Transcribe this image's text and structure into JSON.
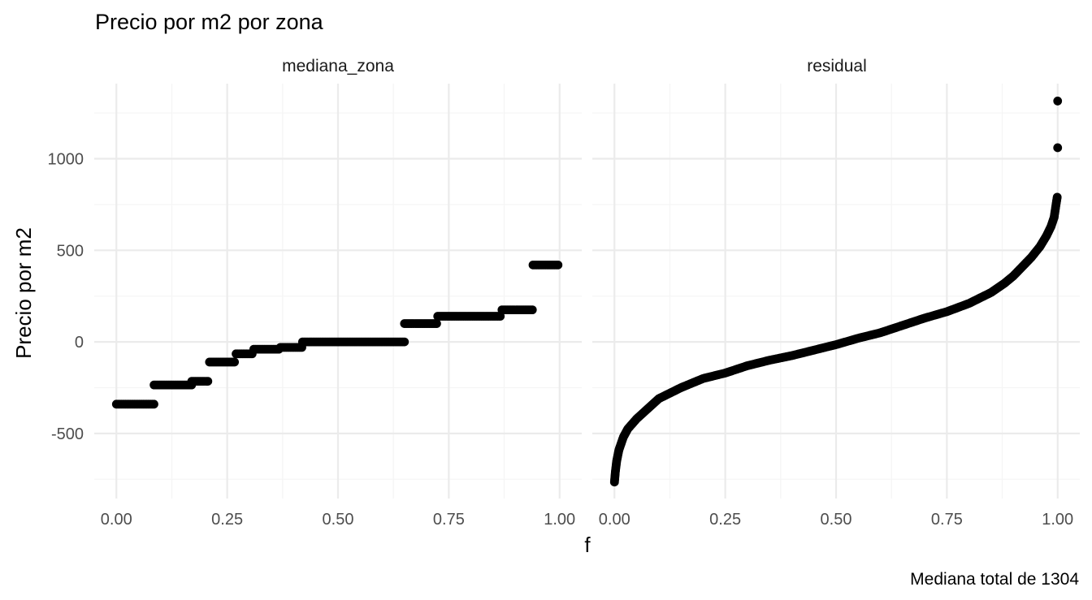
{
  "colors": {
    "points": "#000000",
    "grid_major": "#ebebeb",
    "grid_minor": "#f5f5f5"
  },
  "chart_data": {
    "type": "scatter",
    "title": "Precio por m2 por zona",
    "xlabel": "f",
    "ylabel": "Precio por m2",
    "caption": "Mediana total de 1304",
    "facet_layout": "1 row, 2 columns",
    "x_ticks": [
      "0.00",
      "0.25",
      "0.50",
      "0.75",
      "1.00"
    ],
    "y_ticks": [
      "-500",
      "0",
      "500",
      "1000"
    ],
    "xlim": [
      -0.05,
      1.05
    ],
    "ylim": [
      -855,
      1410
    ],
    "grid": true,
    "legend": "none",
    "panels": [
      {
        "name": "mediana_zona",
        "kind": "steps",
        "steps": [
          {
            "x0": 0.0,
            "x1": 0.085,
            "y": -340
          },
          {
            "x0": 0.085,
            "x1": 0.17,
            "y": -235
          },
          {
            "x0": 0.17,
            "x1": 0.21,
            "y": -215
          },
          {
            "x0": 0.21,
            "x1": 0.27,
            "y": -110
          },
          {
            "x0": 0.27,
            "x1": 0.31,
            "y": -65
          },
          {
            "x0": 0.31,
            "x1": 0.37,
            "y": -40
          },
          {
            "x0": 0.37,
            "x1": 0.42,
            "y": -30
          },
          {
            "x0": 0.42,
            "x1": 0.65,
            "y": 0
          },
          {
            "x0": 0.65,
            "x1": 0.725,
            "y": 100
          },
          {
            "x0": 0.725,
            "x1": 0.87,
            "y": 140
          },
          {
            "x0": 0.87,
            "x1": 0.94,
            "y": 175
          },
          {
            "x0": 0.94,
            "x1": 1.0,
            "y": 420
          }
        ]
      },
      {
        "name": "residual",
        "kind": "quantile_curve",
        "curve": [
          [
            0.0,
            -765
          ],
          [
            0.002,
            -710
          ],
          [
            0.005,
            -650
          ],
          [
            0.01,
            -590
          ],
          [
            0.02,
            -520
          ],
          [
            0.03,
            -475
          ],
          [
            0.05,
            -420
          ],
          [
            0.075,
            -365
          ],
          [
            0.1,
            -310
          ],
          [
            0.15,
            -250
          ],
          [
            0.2,
            -200
          ],
          [
            0.25,
            -170
          ],
          [
            0.3,
            -130
          ],
          [
            0.35,
            -100
          ],
          [
            0.4,
            -75
          ],
          [
            0.45,
            -45
          ],
          [
            0.5,
            -15
          ],
          [
            0.55,
            20
          ],
          [
            0.6,
            50
          ],
          [
            0.65,
            90
          ],
          [
            0.7,
            130
          ],
          [
            0.75,
            165
          ],
          [
            0.8,
            210
          ],
          [
            0.85,
            270
          ],
          [
            0.88,
            320
          ],
          [
            0.9,
            360
          ],
          [
            0.92,
            410
          ],
          [
            0.94,
            460
          ],
          [
            0.96,
            520
          ],
          [
            0.975,
            580
          ],
          [
            0.985,
            630
          ],
          [
            0.992,
            680
          ],
          [
            0.997,
            760
          ],
          [
            0.999,
            790
          ]
        ],
        "outliers": [
          [
            1.0,
            1060
          ],
          [
            1.0,
            1315
          ]
        ]
      }
    ]
  }
}
